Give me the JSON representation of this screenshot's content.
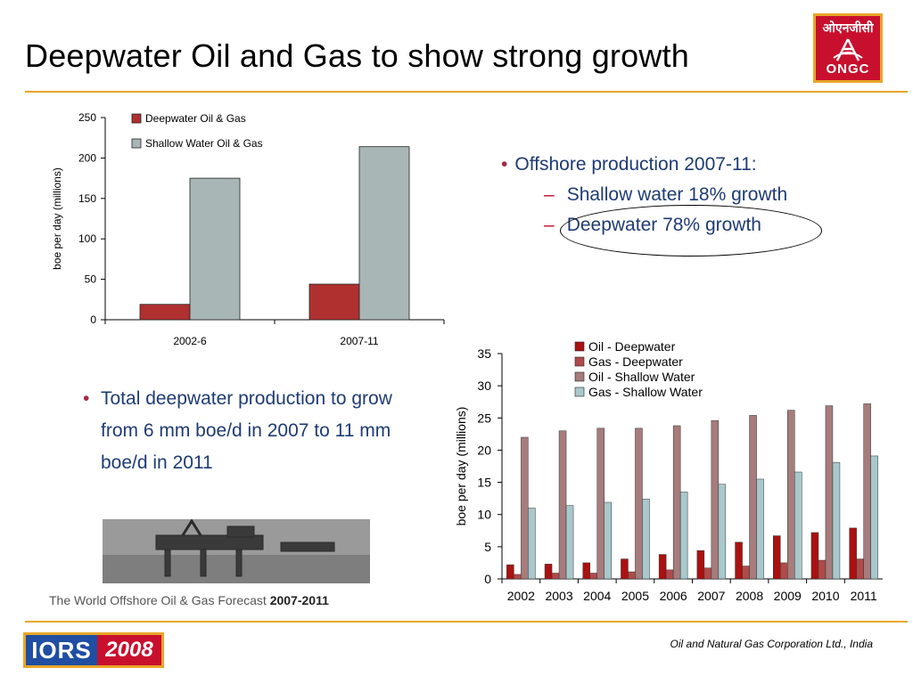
{
  "slide": {
    "title": "Deepwater Oil and Gas to show strong growth",
    "logo": {
      "hindi": "ओएनजीसी",
      "text": "ONGC",
      "colors": {
        "background": "#c8102e",
        "border": "#e8a628"
      }
    },
    "bullets_top": {
      "main": "Offshore production 2007-11:",
      "subs": [
        "Shallow water 18% growth",
        "Deepwater 78% growth"
      ]
    },
    "bullets_mid": {
      "main": "Total deepwater production to grow from 6 mm boe/d in 2007 to 11 mm boe/d in 2011"
    },
    "photo_caption": {
      "prefix": "The World Offshore Oil & Gas Forecast ",
      "years": "2007-2011"
    },
    "footer": {
      "badge_left": "IORS",
      "badge_right": "2008",
      "org": "Oil and Natural Gas Corporation Ltd., India"
    },
    "colors": {
      "rule": "#e8a628",
      "bullet_text": "#1f3b73"
    }
  },
  "chart_data": [
    {
      "type": "bar",
      "categories": [
        "2002-6",
        "2007-11"
      ],
      "series": [
        {
          "name": "Deepwater Oil & Gas",
          "values": [
            19,
            44
          ],
          "color": "#b03030"
        },
        {
          "name": "Shallow Water Oil & Gas",
          "values": [
            175,
            214
          ],
          "color": "#a9b6b6"
        }
      ],
      "ylabel": "boe per day (millions)",
      "ylim": [
        0,
        250
      ],
      "yticks": [
        "0",
        "50",
        "100",
        "150",
        "200",
        "250"
      ],
      "legend": "top-left"
    },
    {
      "type": "bar",
      "categories": [
        "2002",
        "2003",
        "2004",
        "2005",
        "2006",
        "2007",
        "2008",
        "2009",
        "2010",
        "2011"
      ],
      "series": [
        {
          "name": "Oil - Deepwater",
          "values": [
            2.2,
            2.3,
            2.5,
            3.1,
            3.8,
            4.4,
            5.7,
            6.7,
            7.2,
            7.9
          ],
          "color": "#aa1111"
        },
        {
          "name": "Gas - Deepwater",
          "values": [
            0.7,
            0.9,
            0.9,
            1.1,
            1.4,
            1.7,
            2.0,
            2.5,
            2.9,
            3.1
          ],
          "color": "#b04a4a"
        },
        {
          "name": "Oil - Shallow Water",
          "values": [
            22.0,
            23.0,
            23.4,
            23.4,
            23.8,
            24.6,
            25.4,
            26.2,
            26.9,
            27.2
          ],
          "color": "#a67c7c"
        },
        {
          "name": "Gas - Shallow Water",
          "values": [
            11.0,
            11.4,
            11.9,
            12.4,
            13.5,
            14.7,
            15.5,
            16.6,
            18.1,
            19.1
          ],
          "color": "#a8c8cc"
        }
      ],
      "ylabel": "boe per day (millions)",
      "ylim": [
        0,
        35
      ],
      "yticks": [
        "0",
        "5",
        "10",
        "15",
        "20",
        "25",
        "30",
        "35"
      ],
      "legend": "top-center"
    }
  ]
}
